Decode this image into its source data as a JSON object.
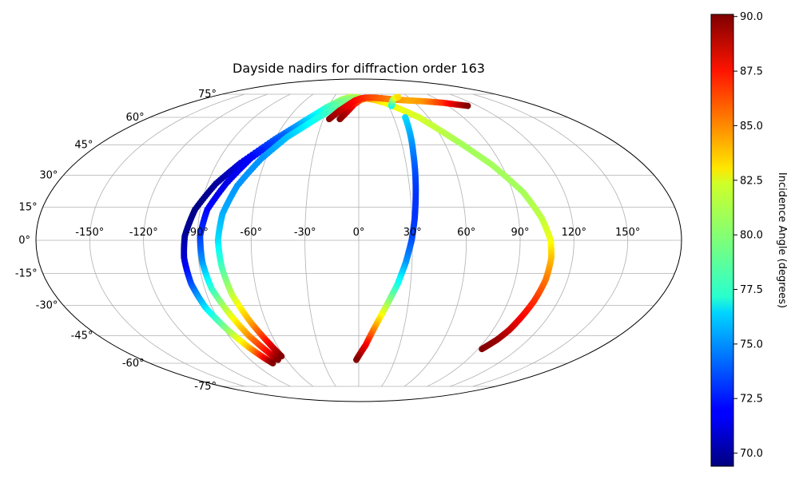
{
  "chart_data": {
    "type": "scatter",
    "projection": "mollweide",
    "title": "Dayside nadirs for diffraction order 163",
    "xlabel": "",
    "ylabel": "",
    "lon_ticks": [
      -150,
      -120,
      -90,
      -60,
      -30,
      0,
      30,
      60,
      90,
      120,
      150
    ],
    "lon_tick_labels": [
      "-150°",
      "-120°",
      "-90°",
      "-60°",
      "-30°",
      "0°",
      "30°",
      "60°",
      "90°",
      "120°",
      "150°"
    ],
    "lat_ticks": [
      75,
      60,
      45,
      30,
      15,
      0,
      -15,
      -30,
      -45,
      -60,
      -75
    ],
    "lat_tick_labels": [
      "75°",
      "60°",
      "45°",
      "30°",
      "15°",
      "0°",
      "-15°",
      "-30°",
      "-45°",
      "-60°",
      "-75°"
    ],
    "grid": true,
    "colormap": "jet",
    "colorbar": {
      "label": "Incidence Angle (degrees)",
      "range": [
        69.4,
        90.1
      ],
      "ticks": [
        70.0,
        72.5,
        75.0,
        77.5,
        80.0,
        82.5,
        85.0,
        87.5,
        90.0
      ],
      "tick_labels": [
        "70.0",
        "72.5",
        "75.0",
        "77.5",
        "80.0",
        "82.5",
        "85.0",
        "87.5",
        "90.0"
      ]
    },
    "series": [
      {
        "lon": [
          -16,
          -10,
          -5,
          2,
          9,
          18,
          28,
          40,
          52,
          63,
          72,
          84,
          96,
          103,
          107,
          108,
          107.5,
          105.5,
          103,
          101,
          98,
          93
        ],
        "lat": [
          59,
          64,
          68,
          71,
          72,
          71,
          69,
          65,
          60,
          52,
          45,
          35,
          22,
          10,
          0,
          -8,
          -18,
          -28,
          -36,
          -42,
          -47,
          -52
        ],
        "incidence": [
          90,
          89,
          87.5,
          86,
          84.5,
          83.5,
          82.5,
          82,
          81.5,
          81,
          80.5,
          80.5,
          80.5,
          81,
          82,
          83.5,
          85,
          86.5,
          87.5,
          88.5,
          89.5,
          90
        ]
      },
      {
        "lon": [
          -10,
          -20,
          -32,
          -45,
          -60,
          -75,
          -85,
          -93,
          -97,
          -98,
          -97,
          -94,
          -88,
          -82,
          -77,
          -74
        ],
        "lat": [
          73,
          71,
          66,
          58,
          48,
          36,
          26,
          14,
          2,
          -8,
          -20,
          -31,
          -42,
          -51,
          -57,
          -60
        ],
        "incidence": [
          81,
          80.5,
          78.5,
          76,
          74,
          71.5,
          70,
          69.5,
          70,
          71,
          73.5,
          76.5,
          80,
          83.5,
          87.5,
          90
        ]
      },
      {
        "lon": [
          -4,
          -15,
          -28,
          -42,
          -56,
          -70,
          -79,
          -86,
          -88.5,
          -88,
          -86,
          -81,
          -76,
          -70,
          -67
        ],
        "lat": [
          73,
          71,
          66,
          59,
          50,
          38,
          26,
          14,
          2,
          -10,
          -22,
          -34,
          -45,
          -54,
          -58
        ],
        "incidence": [
          81,
          80,
          78.5,
          76.5,
          74,
          72,
          71.5,
          72,
          73,
          75,
          78,
          81.5,
          84.5,
          87.5,
          90
        ]
      },
      {
        "lon": [
          -1,
          -12,
          -24,
          -38,
          -52,
          -63,
          -72,
          -77,
          -78.5,
          -77.5,
          -75,
          -70,
          -65,
          -62
        ],
        "lat": [
          73,
          71,
          66,
          58,
          49,
          38,
          25,
          12,
          0,
          -12,
          -25,
          -38,
          -49,
          -56
        ],
        "incidence": [
          81,
          80,
          79,
          77.5,
          76,
          75,
          75,
          75.5,
          76.5,
          78.5,
          81,
          84,
          87.5,
          90
        ]
      },
      {
        "lon": [
          -25,
          -18,
          -10,
          -4,
          3,
          10,
          18,
          27,
          36,
          45,
          57,
          72,
          90,
          110
        ],
        "lat": [
          59,
          64,
          68,
          70.5,
          72,
          72.5,
          72.5,
          72,
          71.5,
          71,
          70.5,
          70,
          69,
          67
        ],
        "incidence": [
          90,
          89,
          88,
          87.5,
          87,
          86.5,
          86,
          85.5,
          85,
          84.5,
          84,
          84.5,
          86.5,
          90
        ]
      },
      {
        "lon": [
          40,
          38,
          36,
          34.5,
          33,
          31.5,
          29.5,
          26.5,
          22.5,
          17,
          11,
          5,
          -2
        ],
        "lat": [
          60,
          50,
          40,
          30,
          20,
          10,
          0,
          -10,
          -20,
          -30,
          -40,
          -50,
          -58
        ],
        "incidence": [
          76.5,
          75.5,
          74.5,
          73.5,
          73,
          73,
          73.5,
          75,
          77.5,
          80.5,
          84,
          87.5,
          90
        ]
      },
      {
        "lon": [
          33,
          36,
          40,
          44,
          48
        ],
        "lat": [
          67,
          69.5,
          71.5,
          72.5,
          73
        ],
        "incidence": [
          77,
          78.5,
          80,
          81.5,
          83
        ]
      }
    ]
  }
}
